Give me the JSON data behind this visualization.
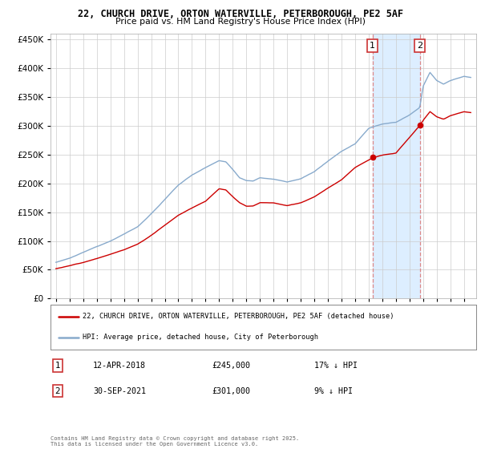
{
  "title_line1": "22, CHURCH DRIVE, ORTON WATERVILLE, PETERBOROUGH, PE2 5AF",
  "title_line2": "Price paid vs. HM Land Registry's House Price Index (HPI)",
  "legend_label_red": "22, CHURCH DRIVE, ORTON WATERVILLE, PETERBOROUGH, PE2 5AF (detached house)",
  "legend_label_blue": "HPI: Average price, detached house, City of Peterborough",
  "annotation1_date": "12-APR-2018",
  "annotation1_price": "£245,000",
  "annotation1_hpi": "17% ↓ HPI",
  "annotation2_date": "30-SEP-2021",
  "annotation2_price": "£301,000",
  "annotation2_hpi": "9% ↓ HPI",
  "footer": "Contains HM Land Registry data © Crown copyright and database right 2025.\nThis data is licensed under the Open Government Licence v3.0.",
  "vline_color": "#dd8888",
  "shade_color": "#ddeeff",
  "red_color": "#cc0000",
  "blue_color": "#88aacc",
  "ann_box_color": "#cc3333",
  "ylim_min": 0,
  "ylim_max": 460000,
  "sale1_year": 2018.28,
  "sale2_year": 2021.75,
  "sale1_price": 245000,
  "sale2_price": 301000,
  "background_color": "#ffffff",
  "grid_color": "#cccccc",
  "red_keypoints_x": [
    1995,
    1996,
    1997,
    1998,
    1999,
    2000,
    2001,
    2002,
    2003,
    2004,
    2005,
    2006,
    2007,
    2007.5,
    2008,
    2008.5,
    2009,
    2009.5,
    2010,
    2011,
    2012,
    2013,
    2014,
    2015,
    2016,
    2017,
    2018.28,
    2019,
    2020,
    2021.75,
    2022,
    2022.5,
    2023,
    2023.5,
    2024,
    2025,
    2025.5
  ],
  "red_keypoints_y": [
    52000,
    57000,
    63000,
    70000,
    77000,
    85000,
    95000,
    110000,
    128000,
    145000,
    158000,
    170000,
    192000,
    190000,
    178000,
    168000,
    162000,
    162000,
    168000,
    168000,
    163000,
    168000,
    178000,
    193000,
    207000,
    228000,
    245000,
    250000,
    253000,
    301000,
    310000,
    325000,
    316000,
    312000,
    318000,
    325000,
    323000
  ],
  "blue_keypoints_x": [
    1995,
    1996,
    1997,
    1998,
    1999,
    2000,
    2001,
    2002,
    2003,
    2004,
    2005,
    2006,
    2007,
    2007.5,
    2008,
    2008.5,
    2009,
    2009.5,
    2010,
    2011,
    2012,
    2013,
    2014,
    2015,
    2016,
    2017,
    2018,
    2019,
    2020,
    2021,
    2021.75,
    2022,
    2022.5,
    2023,
    2023.5,
    2024,
    2025,
    2025.5
  ],
  "blue_keypoints_y": [
    63000,
    70000,
    80000,
    90000,
    100000,
    112000,
    125000,
    148000,
    173000,
    198000,
    215000,
    228000,
    240000,
    238000,
    225000,
    210000,
    205000,
    204000,
    210000,
    208000,
    203000,
    208000,
    220000,
    238000,
    255000,
    268000,
    295000,
    302000,
    305000,
    318000,
    331000,
    368000,
    392000,
    378000,
    372000,
    378000,
    386000,
    384000
  ]
}
